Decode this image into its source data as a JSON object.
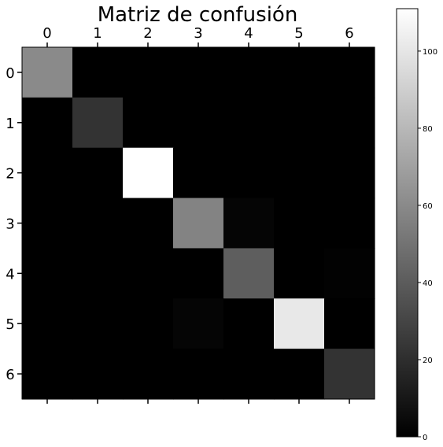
{
  "chart_data": {
    "type": "heatmap",
    "title": "Matriz de confusión",
    "xlabel": "",
    "ylabel": "",
    "x_tick_labels": [
      "0",
      "1",
      "2",
      "3",
      "4",
      "5",
      "6"
    ],
    "y_tick_labels": [
      "0",
      "1",
      "2",
      "3",
      "4",
      "5",
      "6"
    ],
    "x_ticks_position": "top",
    "matrix": [
      [
        60,
        0,
        0,
        0,
        0,
        0,
        0
      ],
      [
        0,
        22,
        0,
        0,
        0,
        0,
        0
      ],
      [
        0,
        0,
        111,
        0,
        0,
        0,
        0
      ],
      [
        0,
        0,
        0,
        57,
        2,
        0,
        0
      ],
      [
        0,
        0,
        0,
        0,
        41,
        0,
        1
      ],
      [
        0,
        0,
        0,
        2,
        0,
        101,
        0
      ],
      [
        0,
        0,
        0,
        0,
        0,
        0,
        22
      ]
    ],
    "colormap": "gray",
    "vmin": 0,
    "vmax": 111,
    "colorbar": {
      "ticks": [
        0,
        20,
        40,
        60,
        80,
        100
      ],
      "tick_labels": [
        "0",
        "20",
        "40",
        "60",
        "80",
        "100"
      ]
    },
    "grid": false
  }
}
